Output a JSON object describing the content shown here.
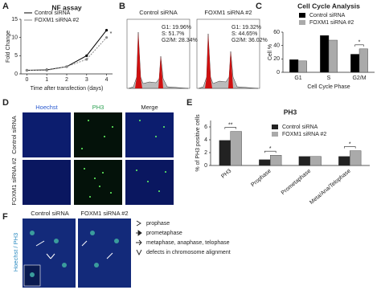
{
  "panel_labels": [
    "A",
    "B",
    "C",
    "D",
    "E",
    "F"
  ],
  "chart_data": [
    {
      "type": "line",
      "title": "NF assay",
      "x_label": "Time after transfection (days)",
      "y_label": "Fold Change",
      "x": [
        0,
        1,
        2,
        3,
        4
      ],
      "xlim": [
        -0.3,
        4.3
      ],
      "xticks": [
        0,
        1,
        2,
        3,
        4
      ],
      "ylim": [
        0,
        15
      ],
      "yticks": [
        0,
        5,
        10,
        15
      ],
      "series": [
        {
          "name": "Control siRNA",
          "color": "#000000",
          "values": [
            1,
            1.1,
            2,
            5,
            12
          ]
        },
        {
          "name": "FOXM1 siRNA #2",
          "color": "#888888",
          "values": [
            1,
            1,
            2,
            4,
            10
          ]
        }
      ],
      "legend": "upper left",
      "annotations": [
        {
          "text": "*",
          "x": 4
        }
      ]
    },
    {
      "type": "bar",
      "title": "Cell Cycle Analysis",
      "x_label": "Cell Cycle Phase",
      "y_label": "Cell %",
      "categories": [
        "G1",
        "S",
        "G2/M"
      ],
      "ylim": [
        0,
        60
      ],
      "yticks": [
        0,
        20,
        40,
        60
      ],
      "series": [
        {
          "name": "Control siRNA",
          "color": "#000000",
          "values": [
            19,
            55,
            27
          ]
        },
        {
          "name": "FOXM1 siRNA #2",
          "color": "#aaaaaa",
          "values": [
            17,
            48,
            35
          ]
        }
      ],
      "legend": "upper right",
      "annotations": [
        {
          "text": "*",
          "category": "G2/M"
        }
      ]
    },
    {
      "type": "bar",
      "title": "PH3",
      "y_label": "% of PH3 positive cells",
      "categories": [
        "PH3",
        "Prophase",
        "Prometaphase",
        "Meta/Ana/Telophase"
      ],
      "ylim": [
        0,
        7
      ],
      "yticks": [
        0,
        2,
        4,
        6
      ],
      "series": [
        {
          "name": "Control siRNA",
          "color": "#222222",
          "values": [
            3.9,
            0.9,
            1.4,
            1.4
          ]
        },
        {
          "name": "FOXM1 siRNA #2",
          "color": "#aaaaaa",
          "values": [
            5.3,
            1.6,
            1.4,
            2.3
          ]
        }
      ],
      "legend": "upper right",
      "rotate_x_labels": true,
      "annotations": [
        {
          "text": "**",
          "category": "PH3"
        },
        {
          "text": "*",
          "category": "Prophase"
        },
        {
          "text": "*",
          "category": "Meta/Ana/Telophase"
        }
      ]
    }
  ],
  "flow_cytometry": {
    "samples": [
      {
        "name": "Control siRNA",
        "stats": [
          "G1: 19.96%",
          "S: 51.7%",
          "G2/M: 28.34%"
        ]
      },
      {
        "name": "FOXM1 siRNA #2",
        "stats": [
          "G1: 19.32%",
          "S: 44.65%",
          "G2/M: 36.02%"
        ]
      }
    ]
  },
  "immunofluorescence": {
    "columns": [
      "Hoechst",
      "PH3",
      "Merge"
    ],
    "rows": [
      "Control siRNA",
      "FOXM1 siRNA #2"
    ]
  },
  "mitosis_images": {
    "columns": [
      "Control siRNA",
      "FOXM1 siRNA #2"
    ],
    "stain_label": "Hoechst / PH3",
    "legend": [
      "prophase",
      "prometaphase",
      "metaphase, anaphase, telophase",
      "defects in chromosome alignment"
    ]
  }
}
